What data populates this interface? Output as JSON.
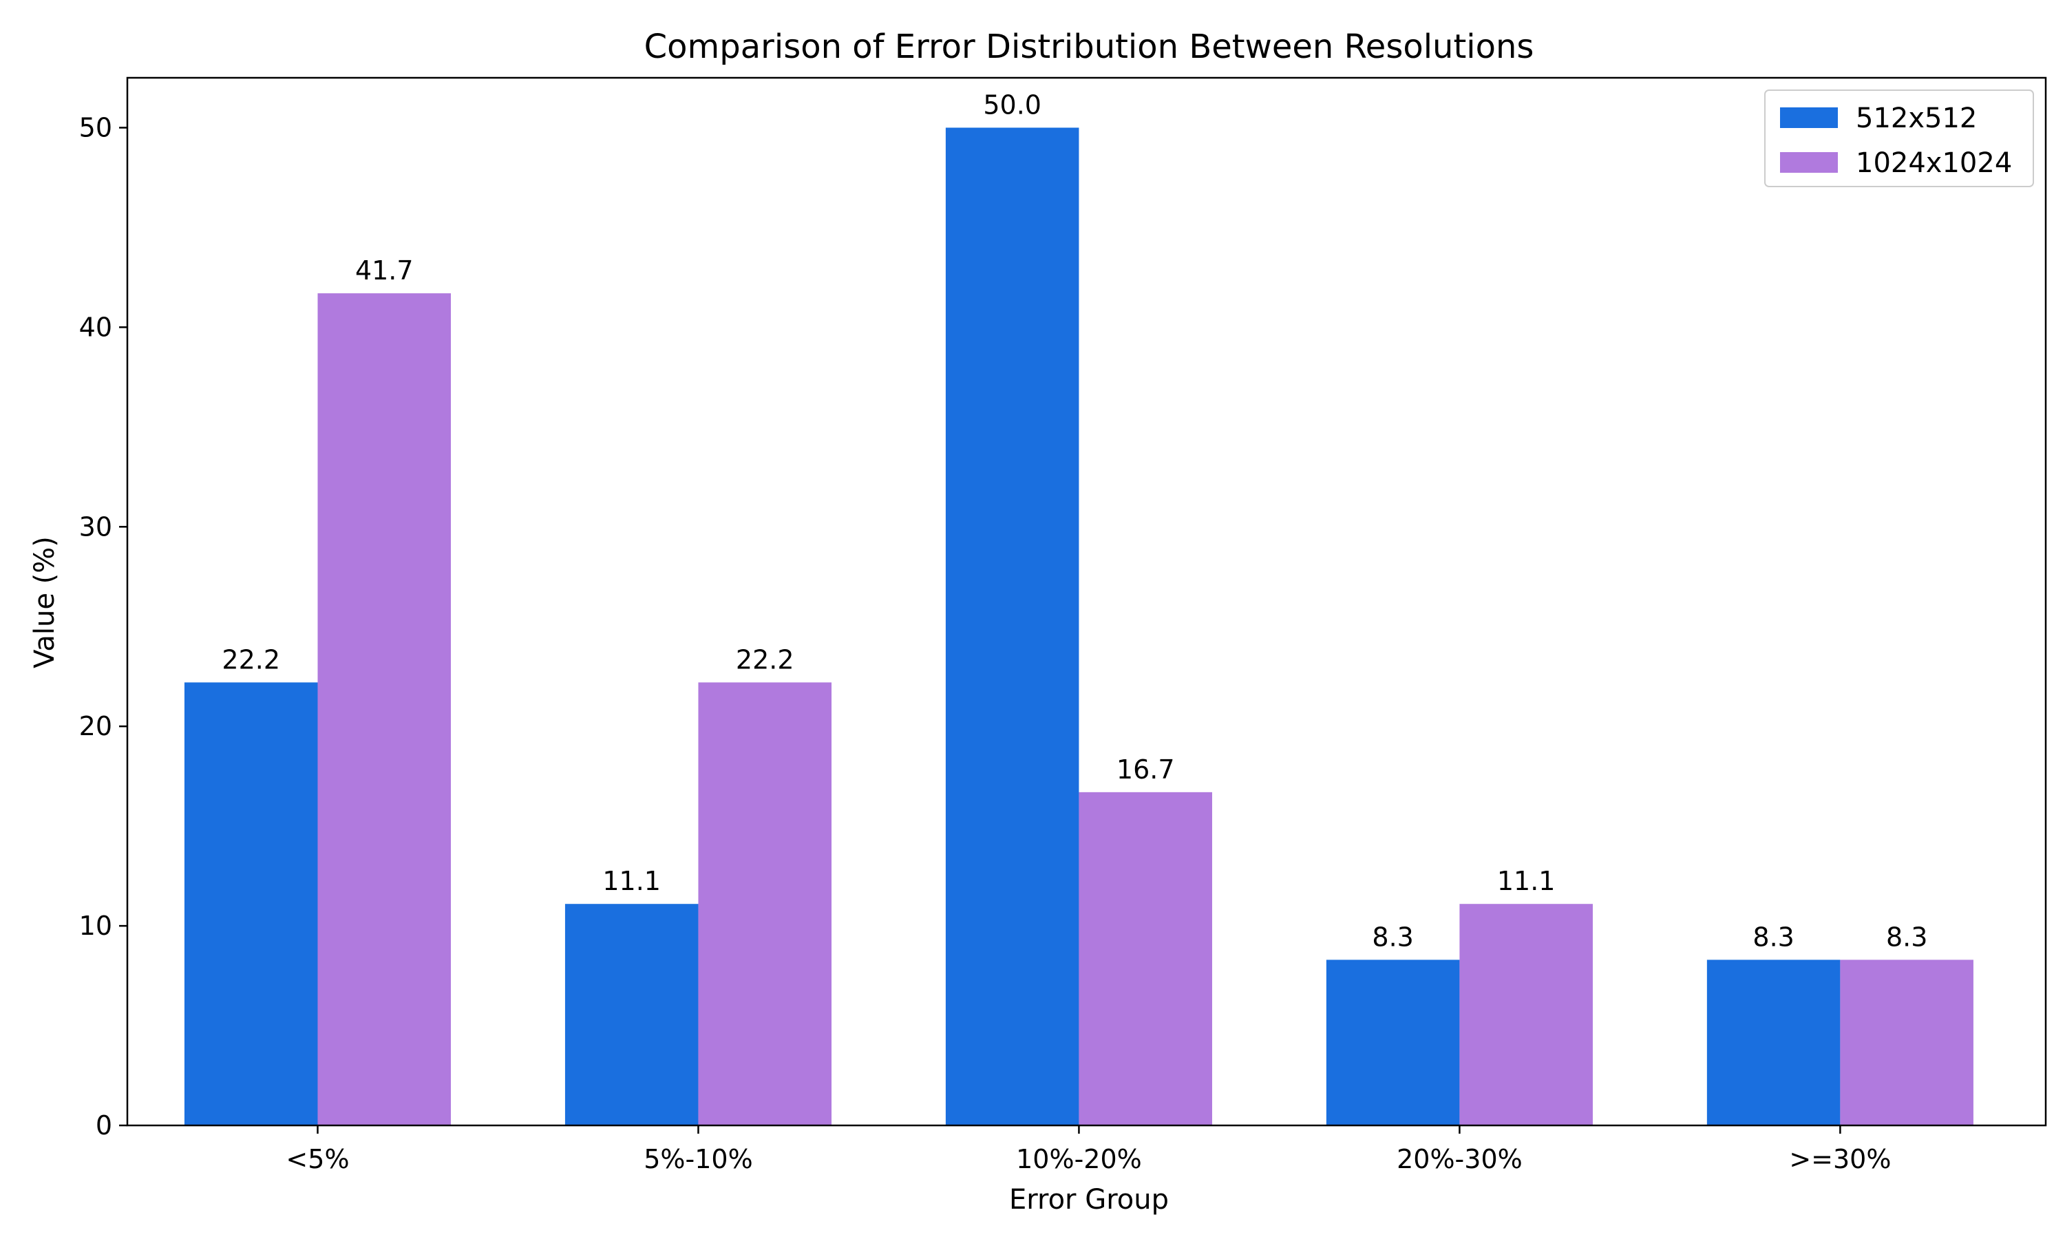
{
  "chart_data": {
    "type": "bar",
    "title": "Comparison of Error Distribution Between Resolutions",
    "xlabel": "Error Group",
    "ylabel": "Value (%)",
    "categories": [
      "<5%",
      "5%-10%",
      "10%-20%",
      "20%-30%",
      ">=30%"
    ],
    "series": [
      {
        "name": "512x512",
        "color": "#1a6fdf",
        "values": [
          22.2,
          11.1,
          50.0,
          8.3,
          8.3
        ]
      },
      {
        "name": "1024x1024",
        "color": "#b07ade",
        "values": [
          41.7,
          22.2,
          16.7,
          11.1,
          8.3
        ]
      }
    ],
    "ylim": [
      0,
      52.5
    ],
    "yticks": [
      0,
      10,
      20,
      30,
      40,
      50
    ],
    "legend_position": "top-right",
    "grid": false
  }
}
